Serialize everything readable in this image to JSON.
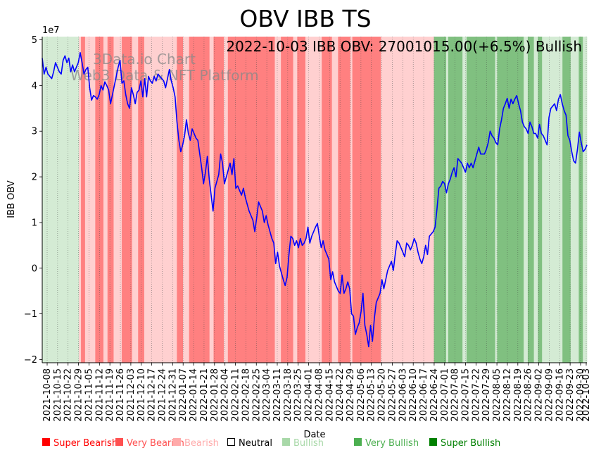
{
  "chart_data": {
    "type": "line",
    "title": "OBV IBB TS",
    "xlabel": "Date",
    "ylabel": "IBB OBV",
    "y_multiplier_label": "1e7",
    "ylim": [
      -2.07,
      5.07
    ],
    "yticks": [
      -2,
      -1,
      0,
      1,
      2,
      3,
      4,
      5
    ],
    "annotation": "2022-10-03 IBB OBV: 27001015.00(+6.5%) Bullish",
    "watermark": [
      "3Data.io Chart",
      "Web3 Data & NFT Platform"
    ],
    "xtick_labels": [
      "2021-10-08",
      "2021-10-15",
      "2021-10-22",
      "2021-10-29",
      "2021-11-05",
      "2021-11-12",
      "2021-11-19",
      "2021-11-26",
      "2021-12-03",
      "2021-12-10",
      "2021-12-17",
      "2021-12-24",
      "2021-12-31",
      "2022-01-07",
      "2022-01-14",
      "2022-01-21",
      "2022-01-28",
      "2022-02-04",
      "2022-02-11",
      "2022-02-18",
      "2022-02-25",
      "2022-03-04",
      "2022-03-11",
      "2022-03-18",
      "2022-03-25",
      "2022-04-01",
      "2022-04-08",
      "2022-04-15",
      "2022-04-22",
      "2022-04-29",
      "2022-05-06",
      "2022-05-13",
      "2022-05-20",
      "2022-05-27",
      "2022-06-03",
      "2022-06-10",
      "2022-06-17",
      "2022-06-24",
      "2022-07-01",
      "2022-07-08",
      "2022-07-15",
      "2022-07-22",
      "2022-07-29",
      "2022-08-05",
      "2022-08-12",
      "2022-08-19",
      "2022-08-26",
      "2022-09-02",
      "2022-09-09",
      "2022-09-16",
      "2022-09-23",
      "2022-09-30",
      "2022-10-03"
    ],
    "series": [
      {
        "name": "IBB OBV",
        "color": "#0000ff",
        "values": [
          4.6,
          4.25,
          4.4,
          4.25,
          4.2,
          4.15,
          4.3,
          4.5,
          4.4,
          4.3,
          4.25,
          4.55,
          4.65,
          4.5,
          4.6,
          4.3,
          4.45,
          4.3,
          4.4,
          4.5,
          4.72,
          4.5,
          4.25,
          4.35,
          4.4,
          3.95,
          3.68,
          3.78,
          3.75,
          3.7,
          3.8,
          4.0,
          3.9,
          4.08,
          4.0,
          3.9,
          3.6,
          3.8,
          4.0,
          4.2,
          4.4,
          4.55,
          4.05,
          4.1,
          3.8,
          3.6,
          3.5,
          3.95,
          3.8,
          3.6,
          3.85,
          3.9,
          4.1,
          3.75,
          4.15,
          3.75,
          4.2,
          4.1,
          4.05,
          4.2,
          4.1,
          4.25,
          4.2,
          4.15,
          4.1,
          3.95,
          4.15,
          4.35,
          4.1,
          3.95,
          3.75,
          3.2,
          2.8,
          2.55,
          2.7,
          2.9,
          3.25,
          2.95,
          2.8,
          3.05,
          2.95,
          2.85,
          2.8,
          2.5,
          2.2,
          1.85,
          2.1,
          2.45,
          1.95,
          1.6,
          1.25,
          1.75,
          1.9,
          2.05,
          2.5,
          2.3,
          1.85,
          2.0,
          2.15,
          2.3,
          2.05,
          2.4,
          1.75,
          1.8,
          1.7,
          1.6,
          1.75,
          1.55,
          1.4,
          1.25,
          1.15,
          1.05,
          0.8,
          1.1,
          1.45,
          1.35,
          1.25,
          1.0,
          1.15,
          0.95,
          0.8,
          0.65,
          0.55,
          0.1,
          0.35,
          0.05,
          -0.1,
          -0.25,
          -0.38,
          -0.2,
          0.3,
          0.7,
          0.65,
          0.5,
          0.6,
          0.45,
          0.65,
          0.5,
          0.55,
          0.65,
          0.9,
          0.55,
          0.7,
          0.8,
          0.9,
          0.98,
          0.7,
          0.45,
          0.6,
          0.4,
          0.3,
          0.2,
          -0.25,
          -0.08,
          -0.3,
          -0.4,
          -0.5,
          -0.55,
          -0.15,
          -0.55,
          -0.45,
          -0.3,
          -0.45,
          -1.0,
          -1.05,
          -1.45,
          -1.3,
          -1.2,
          -0.95,
          -0.55,
          -1.25,
          -1.45,
          -1.72,
          -1.25,
          -1.6,
          -1.1,
          -0.75,
          -0.65,
          -0.55,
          -0.25,
          -0.45,
          -0.25,
          -0.05,
          0.05,
          0.15,
          -0.05,
          0.3,
          0.6,
          0.55,
          0.45,
          0.35,
          0.25,
          0.55,
          0.5,
          0.4,
          0.5,
          0.65,
          0.55,
          0.35,
          0.2,
          0.1,
          0.25,
          0.5,
          0.3,
          0.7,
          0.75,
          0.8,
          0.9,
          1.3,
          1.75,
          1.8,
          1.9,
          1.85,
          1.65,
          1.85,
          1.95,
          2.1,
          2.2,
          2.0,
          2.4,
          2.35,
          2.3,
          2.2,
          2.1,
          2.3,
          2.2,
          2.3,
          2.2,
          2.35,
          2.5,
          2.65,
          2.5,
          2.5,
          2.5,
          2.6,
          2.75,
          3.0,
          2.9,
          2.85,
          2.75,
          2.7,
          3.05,
          3.25,
          3.5,
          3.6,
          3.72,
          3.5,
          3.7,
          3.6,
          3.7,
          3.78,
          3.6,
          3.45,
          3.2,
          3.1,
          3.05,
          2.95,
          3.2,
          3.1,
          2.95,
          2.95,
          2.85,
          3.15,
          2.95,
          2.9,
          2.8,
          2.7,
          3.3,
          3.5,
          3.55,
          3.6,
          3.45,
          3.7,
          3.8,
          3.6,
          3.45,
          3.35,
          2.9,
          2.8,
          2.55,
          2.35,
          2.3,
          2.6,
          2.98,
          2.75,
          2.55,
          2.6,
          2.7
        ]
      }
    ],
    "sentiment_bands": [
      {
        "state": "bullish",
        "n": 18
      },
      {
        "state": "bearish",
        "n": 1
      },
      {
        "state": "very_bearish",
        "n": 2
      },
      {
        "state": "bearish",
        "n": 5
      },
      {
        "state": "very_bearish",
        "n": 4
      },
      {
        "state": "bearish",
        "n": 2
      },
      {
        "state": "very_bearish",
        "n": 3
      },
      {
        "state": "bearish",
        "n": 4
      },
      {
        "state": "very_bearish",
        "n": 5
      },
      {
        "state": "bearish",
        "n": 3
      },
      {
        "state": "very_bearish",
        "n": 3
      },
      {
        "state": "bearish",
        "n": 16
      },
      {
        "state": "very_bearish",
        "n": 3
      },
      {
        "state": "bearish",
        "n": 3
      },
      {
        "state": "very_bearish",
        "n": 10
      },
      {
        "state": "bearish",
        "n": 2
      },
      {
        "state": "very_bearish",
        "n": 5
      },
      {
        "state": "bearish",
        "n": 2
      },
      {
        "state": "very_bearish",
        "n": 23
      },
      {
        "state": "bearish",
        "n": 3
      },
      {
        "state": "very_bearish",
        "n": 6
      },
      {
        "state": "bearish",
        "n": 2
      },
      {
        "state": "very_bearish",
        "n": 4
      },
      {
        "state": "bearish",
        "n": 4
      },
      {
        "state": "bearish",
        "n": 4
      },
      {
        "state": "very_bearish",
        "n": 5
      },
      {
        "state": "bearish",
        "n": 3
      },
      {
        "state": "very_bearish",
        "n": 6
      },
      {
        "state": "bearish",
        "n": 1
      },
      {
        "state": "very_bearish",
        "n": 14
      },
      {
        "state": "bearish",
        "n": 17
      },
      {
        "state": "bearish",
        "n": 9
      },
      {
        "state": "very_bullish",
        "n": 6
      },
      {
        "state": "bullish",
        "n": 1
      },
      {
        "state": "very_bullish",
        "n": 7
      },
      {
        "state": "bullish",
        "n": 2
      },
      {
        "state": "very_bullish",
        "n": 14
      },
      {
        "state": "bullish",
        "n": 1
      },
      {
        "state": "very_bullish",
        "n": 13
      },
      {
        "state": "bullish",
        "n": 2
      },
      {
        "state": "very_bullish",
        "n": 3
      },
      {
        "state": "bullish",
        "n": 2
      },
      {
        "state": "very_bullish",
        "n": 2
      },
      {
        "state": "bullish",
        "n": 10
      },
      {
        "state": "very_bullish",
        "n": 4
      },
      {
        "state": "bullish",
        "n": 4
      },
      {
        "state": "very_bullish",
        "n": 2
      },
      {
        "state": "bullish",
        "n": 2
      }
    ],
    "legend": [
      {
        "label": "Super Bearish",
        "color": "#ff0000"
      },
      {
        "label": "Very Bearish",
        "color": "#ff5050"
      },
      {
        "label": "Bearish",
        "color": "#ffaaaa"
      },
      {
        "label": "Neutral",
        "color": "#000000"
      },
      {
        "label": "Bullish",
        "color": "#a8d8a8"
      },
      {
        "label": "Very Bullish",
        "color": "#4caf50"
      },
      {
        "label": "Super Bullish",
        "color": "#008000"
      }
    ],
    "band_colors": {
      "bullish": "#d4ebd4",
      "very_bullish": "#80c080",
      "bearish": "#ffd0d0",
      "very_bearish": "#ff8080"
    }
  }
}
